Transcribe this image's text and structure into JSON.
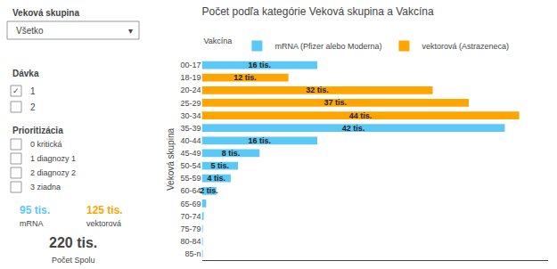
{
  "chart_data": {
    "type": "bar",
    "orientation": "horizontal",
    "title": "Počet podľa kategórie Veková skupina a Vakcína",
    "ylabel": "Veková skupina",
    "legend_title": "Vakcína",
    "legend": "top",
    "categories": [
      "00-17",
      "18-19",
      "20-24",
      "25-29",
      "30-34",
      "35-39",
      "40-44",
      "45-49",
      "50-54",
      "55-59",
      "60-64",
      "65-69",
      "70-74",
      "75-79",
      "80-84",
      "85-n"
    ],
    "series": [
      {
        "name": "mRNA (Pfizer alebo Moderna)",
        "color": "#5BC8F5",
        "values": [
          16,
          0,
          0,
          0,
          0,
          42,
          16,
          8,
          5,
          4,
          2,
          0.6,
          0.25,
          0.12,
          0.06,
          0.03
        ],
        "value_labels": [
          "16 tis.",
          null,
          null,
          null,
          null,
          "42 tis.",
          "16 tis.",
          "8 tis.",
          "5 tis.",
          "4 tis.",
          "2 tis.",
          null,
          null,
          null,
          null,
          null
        ]
      },
      {
        "name": "vektorová (Astrazeneca)",
        "color": "#FFA500",
        "values": [
          0,
          12,
          32,
          37,
          44,
          0,
          0,
          0,
          0,
          0,
          0,
          0,
          0,
          0,
          0,
          0
        ],
        "value_labels": [
          null,
          "12 tis.",
          "32 tis.",
          "37 tis.",
          "44 tis.",
          null,
          null,
          null,
          null,
          null,
          null,
          null,
          null,
          null,
          null,
          null
        ]
      }
    ],
    "xlim": [
      0,
      48
    ],
    "grid": false,
    "data_labels": true,
    "tick_labels": "y",
    "annotations": [
      {
        "text": "Veková skupina"
      },
      {
        "text": "Všetko"
      },
      {
        "text": "▾"
      },
      {
        "text": "Dávka"
      },
      {
        "text": "✓"
      },
      {
        "text": "1"
      },
      {
        "text": "2"
      },
      {
        "text": "Prioritizácia"
      },
      {
        "text": "0 kritická"
      },
      {
        "text": "1 diagnozy 1"
      },
      {
        "text": "2 diagnozy 2"
      },
      {
        "text": "3 ziadna"
      },
      {
        "text": "95 tis.",
        "color": "#5BC8F5"
      },
      {
        "text": "mRNA"
      },
      {
        "text": "125 tis.",
        "color": "#FFA500"
      },
      {
        "text": "vektorová"
      },
      {
        "text": "220 tis."
      },
      {
        "text": "Počet Spolu"
      }
    ]
  }
}
